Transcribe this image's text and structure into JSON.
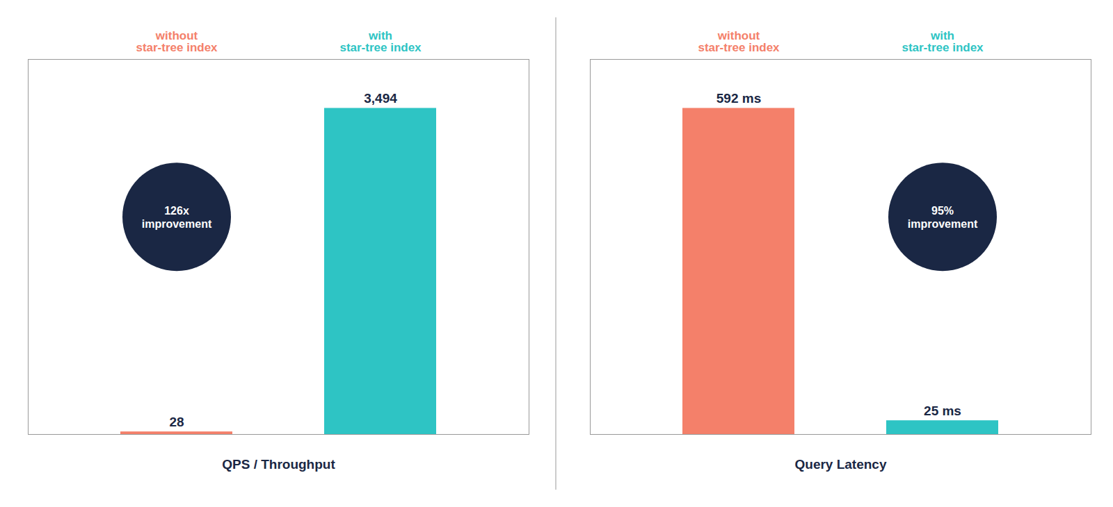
{
  "chart_data": [
    {
      "type": "bar",
      "xlabel": "QPS / Throughput",
      "categories": [
        "without\nstar-tree index",
        "with\nstar-tree index"
      ],
      "values": [
        28,
        3494
      ],
      "value_labels": [
        "28",
        "3,494"
      ],
      "colors": [
        "#f4806a",
        "#2ec4c4"
      ],
      "ylim": [
        0,
        4018.1
      ],
      "yticks": [],
      "grid": false,
      "data_labels": true,
      "tick_labels": false,
      "annotations": [
        "126x\nimprovement"
      ]
    },
    {
      "type": "bar",
      "xlabel": "Query Latency",
      "categories": [
        "without\nstar-tree index",
        "with\nstar-tree index"
      ],
      "values": [
        592,
        25
      ],
      "value_labels": [
        "592 ms",
        "25 ms"
      ],
      "colors": [
        "#f4806a",
        "#2ec4c4"
      ],
      "ylim": [
        0,
        680.8
      ],
      "yticks": [],
      "grid": false,
      "data_labels": true,
      "tick_labels": false,
      "annotations": [
        "95%\nimprovement"
      ]
    }
  ]
}
